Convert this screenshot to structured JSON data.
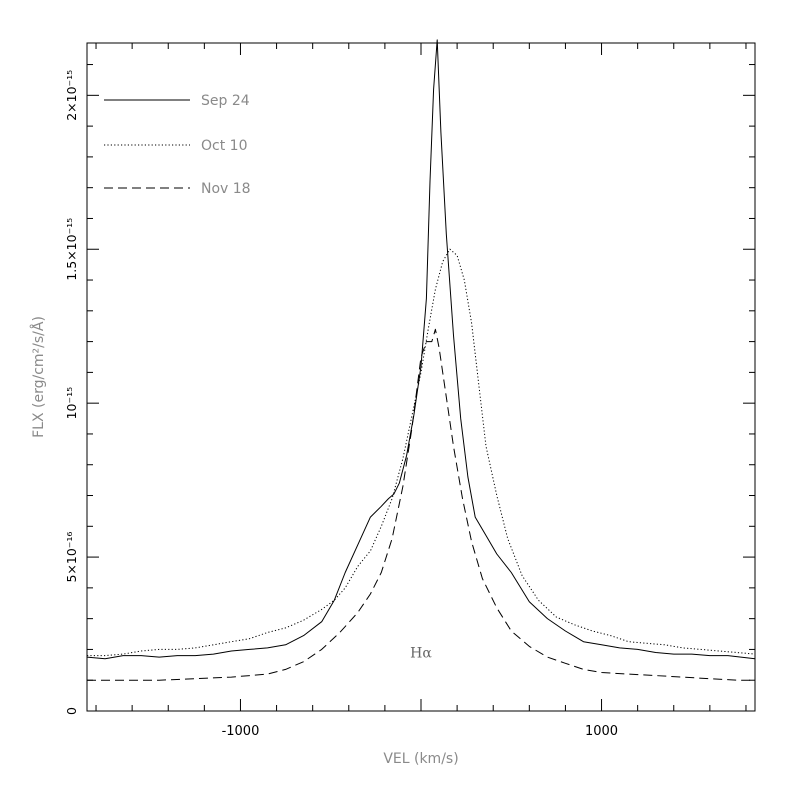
{
  "chart_data": {
    "type": "line",
    "xlabel": "VEL (km/s)",
    "ylabel": "FLX (erg/cm²/s/Å)",
    "xlim": [
      -1850,
      1850
    ],
    "ylim": [
      0,
      2.17e-15
    ],
    "xticks": [
      {
        "value": -1000,
        "label": "-1000"
      },
      {
        "value": 1000,
        "label": "1000"
      }
    ],
    "yticks": [
      {
        "value": 0,
        "label": "0"
      },
      {
        "value": 5e-16,
        "label": "5×10⁻¹⁶"
      },
      {
        "value": 1e-15,
        "label": "10⁻¹⁵"
      },
      {
        "value": 1.5e-15,
        "label": "1.5×10⁻¹⁵"
      },
      {
        "value": 2e-15,
        "label": "2×10⁻¹⁵"
      }
    ],
    "annotation": {
      "text": "Hα",
      "x": 0,
      "y": 1.9e-16
    },
    "legend_position": "top-left",
    "series": [
      {
        "name": "Sep 24",
        "line_style": "solid",
        "color": "#000000",
        "x": [
          -1850,
          -1750,
          -1650,
          -1550,
          -1450,
          -1350,
          -1250,
          -1150,
          -1050,
          -950,
          -850,
          -750,
          -650,
          -550,
          -480,
          -420,
          -350,
          -280,
          -220,
          -180,
          -150,
          -120,
          -80,
          -40,
          0,
          30,
          50,
          70,
          90,
          110,
          140,
          180,
          220,
          260,
          300,
          360,
          420,
          500,
          600,
          700,
          800,
          900,
          1000,
          1100,
          1200,
          1300,
          1400,
          1500,
          1600,
          1700,
          1850
        ],
        "y": [
          1.75e-16,
          1.7e-16,
          1.8e-16,
          1.8e-16,
          1.75e-16,
          1.8e-16,
          1.8e-16,
          1.85e-16,
          1.95e-16,
          2e-16,
          2.05e-16,
          2.15e-16,
          2.45e-16,
          2.9e-16,
          3.6e-16,
          4.5e-16,
          5.4e-16,
          6.3e-16,
          6.65e-16,
          6.9e-16,
          7.05e-16,
          7.4e-16,
          8.3e-16,
          9.6e-16,
          1.12e-15,
          1.34e-15,
          1.72e-15,
          2.02e-15,
          2.18e-15,
          1.88e-15,
          1.55e-15,
          1.22e-15,
          9.5e-16,
          7.6e-16,
          6.3e-16,
          5.7e-16,
          5.1e-16,
          4.5e-16,
          3.55e-16,
          3e-16,
          2.6e-16,
          2.25e-16,
          2.15e-16,
          2.05e-16,
          2e-16,
          1.9e-16,
          1.85e-16,
          1.85e-16,
          1.8e-16,
          1.8e-16,
          1.7e-16
        ]
      },
      {
        "name": "Oct 10",
        "line_style": "dotted",
        "color": "#000000",
        "x": [
          -1850,
          -1750,
          -1650,
          -1550,
          -1450,
          -1350,
          -1250,
          -1150,
          -1050,
          -950,
          -850,
          -750,
          -650,
          -550,
          -480,
          -420,
          -350,
          -280,
          -220,
          -160,
          -100,
          -50,
          0,
          40,
          80,
          120,
          160,
          200,
          240,
          280,
          320,
          360,
          420,
          480,
          560,
          650,
          750,
          850,
          950,
          1050,
          1150,
          1250,
          1350,
          1450,
          1550,
          1650,
          1750,
          1850
        ],
        "y": [
          1.8e-16,
          1.8e-16,
          1.85e-16,
          1.95e-16,
          2e-16,
          2e-16,
          2.05e-16,
          2.15e-16,
          2.25e-16,
          2.35e-16,
          2.55e-16,
          2.7e-16,
          2.95e-16,
          3.3e-16,
          3.6e-16,
          4e-16,
          4.7e-16,
          5.2e-16,
          6e-16,
          6.9e-16,
          8.2e-16,
          9.6e-16,
          1.1e-15,
          1.24e-15,
          1.37e-15,
          1.46e-15,
          1.5e-15,
          1.48e-15,
          1.4e-15,
          1.26e-15,
          1.06e-15,
          8.6e-16,
          7e-16,
          5.6e-16,
          4.4e-16,
          3.6e-16,
          3.05e-16,
          2.8e-16,
          2.6e-16,
          2.45e-16,
          2.25e-16,
          2.2e-16,
          2.15e-16,
          2.05e-16,
          2e-16,
          1.95e-16,
          1.9e-16,
          1.85e-16
        ]
      },
      {
        "name": "Nov 18",
        "line_style": "dashed",
        "color": "#000000",
        "x": [
          -1850,
          -1650,
          -1450,
          -1250,
          -1050,
          -850,
          -750,
          -650,
          -550,
          -450,
          -350,
          -280,
          -220,
          -160,
          -100,
          -50,
          0,
          30,
          60,
          80,
          100,
          140,
          180,
          230,
          280,
          340,
          420,
          500,
          600,
          700,
          800,
          900,
          1000,
          1150,
          1300,
          1450,
          1600,
          1750,
          1850
        ],
        "y": [
          1e-16,
          1e-16,
          1e-16,
          1.05e-16,
          1.1e-16,
          1.2e-16,
          1.35e-16,
          1.6e-16,
          2e-16,
          2.55e-16,
          3.2e-16,
          3.8e-16,
          4.5e-16,
          5.6e-16,
          7.3e-16,
          9.2e-16,
          1.15e-15,
          1.2e-15,
          1.2e-15,
          1.24e-15,
          1.18e-15,
          1.02e-15,
          8.6e-16,
          6.9e-16,
          5.5e-16,
          4.3e-16,
          3.35e-16,
          2.6e-16,
          2.1e-16,
          1.75e-16,
          1.55e-16,
          1.35e-16,
          1.25e-16,
          1.2e-16,
          1.15e-16,
          1.1e-16,
          1.05e-16,
          1e-16,
          1e-16
        ]
      }
    ]
  }
}
